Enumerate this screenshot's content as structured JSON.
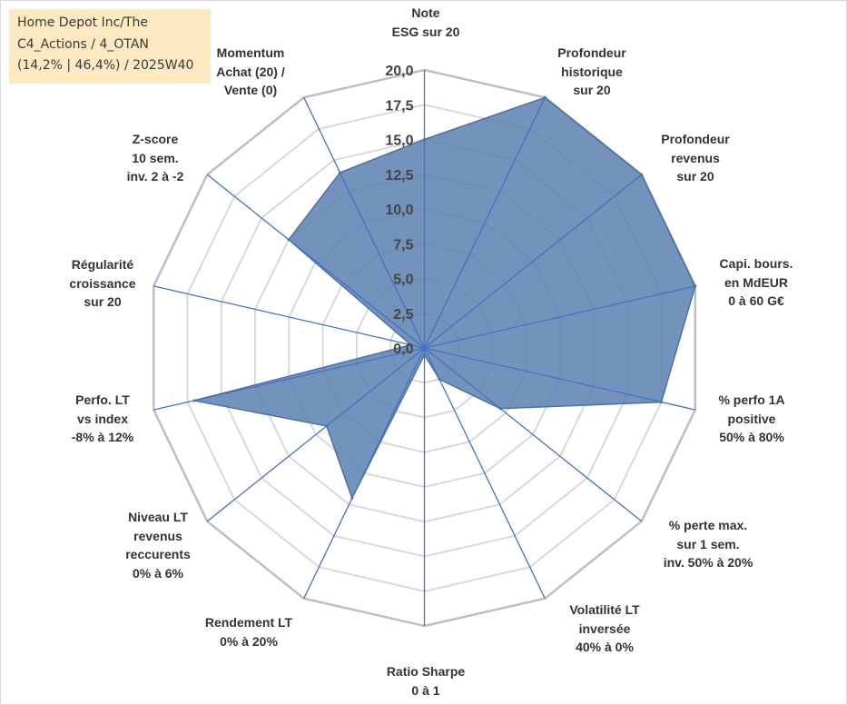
{
  "info": {
    "line1": "Home Depot Inc/The",
    "line2": "C4_Actions / 4_OTAN",
    "line3": "(14,2% | 46,4%) / 2025W40"
  },
  "colors": {
    "fill": "#5b80b2",
    "stroke": "#4a72a8",
    "axis_line": "#4472c4",
    "grid_outer": "#bfbfbf",
    "grid": "#d9d9d9",
    "info_bg": "#fde9c2",
    "text": "#333333"
  },
  "chart_data": {
    "type": "radar",
    "title": "",
    "rmin": 0,
    "rmax": 20,
    "tick_step": 2.5,
    "tick_labels": [
      "0,0",
      "2,5",
      "5,0",
      "7,5",
      "10,0",
      "12,5",
      "15,0",
      "17,5",
      "20,0"
    ],
    "axes": [
      {
        "lines": [
          "Note",
          "ESG sur 20"
        ],
        "value": 15.0
      },
      {
        "lines": [
          "Profondeur",
          "historique",
          "sur 20"
        ],
        "value": 20.0
      },
      {
        "lines": [
          "Profondeur",
          "revenus",
          "sur 20"
        ],
        "value": 20.0
      },
      {
        "lines": [
          "Capi. bours.",
          "en MdEUR",
          "0 à 60 G€"
        ],
        "value": 20.0
      },
      {
        "lines": [
          "% perfo 1A",
          "positive",
          "50% à 80%"
        ],
        "value": 17.5
      },
      {
        "lines": [
          "% perte max.",
          "sur 1 sem.",
          "inv. 50% à 20%"
        ],
        "value": 7.0
      },
      {
        "lines": [
          "Volatilité LT",
          "inversée",
          "40% à 0%"
        ],
        "value": 2.5
      },
      {
        "lines": [
          "Ratio Sharpe",
          "0 à 1"
        ],
        "value": 0.5
      },
      {
        "lines": [
          "Rendement LT",
          "0% à 20%"
        ],
        "value": 12.0
      },
      {
        "lines": [
          "Niveau LT",
          "revenus",
          "reccurents",
          "0% à 6%"
        ],
        "value": 9.0
      },
      {
        "lines": [
          "Perfo. LT",
          "vs index",
          "-8% à 12%"
        ],
        "value": 17.0
      },
      {
        "lines": [
          "Régularité",
          "croissance",
          "sur 20"
        ],
        "value": 1.0
      },
      {
        "lines": [
          "Z-score",
          "10 sem.",
          "inv. 2 à -2"
        ],
        "value": 12.5
      },
      {
        "lines": [
          "Momentum",
          "Achat (20) /",
          "Vente (0)"
        ],
        "value": 14.0
      }
    ]
  }
}
